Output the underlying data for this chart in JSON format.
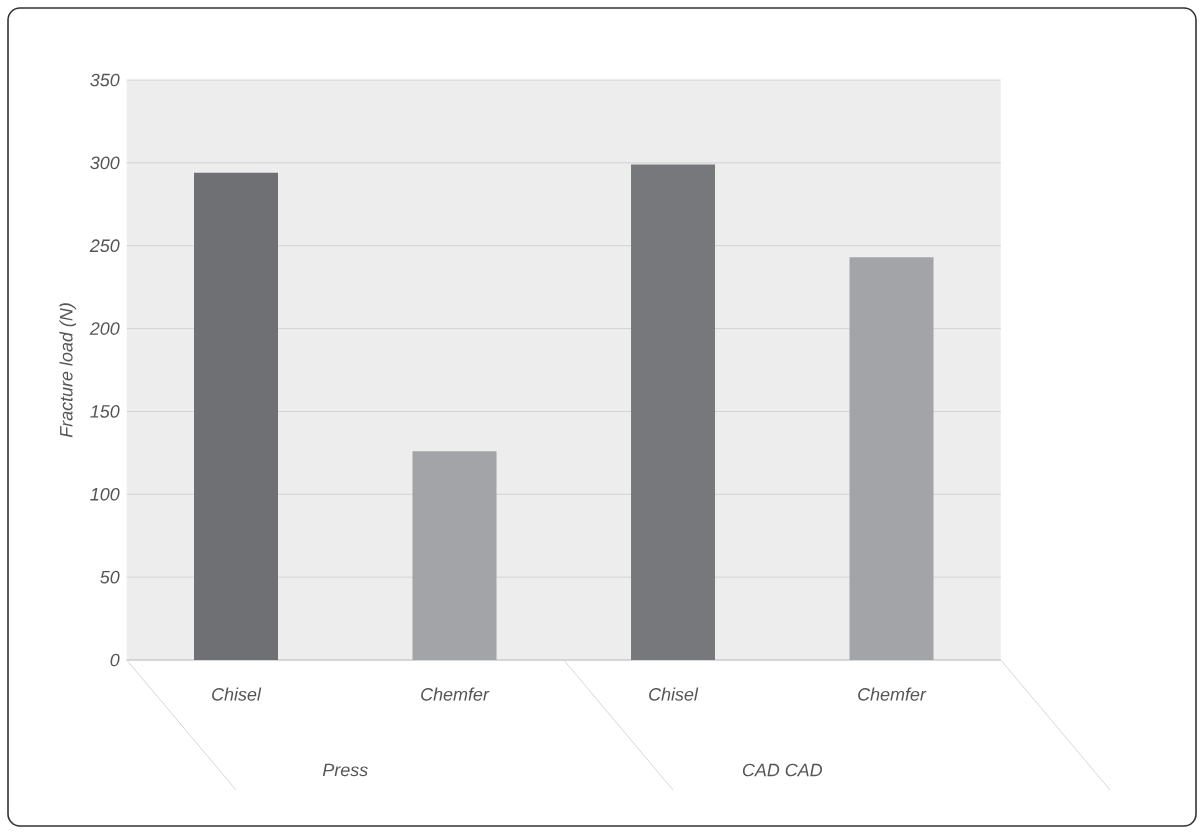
{
  "chart_data": {
    "type": "bar",
    "ylabel": "Fracture load (N)",
    "categories": [
      "Chisel",
      "Chemfer",
      "Chisel",
      "Chemfer"
    ],
    "values": [
      294,
      126,
      299,
      243
    ],
    "colors": [
      "#6f7074",
      "#a3a4a8",
      "#77787c",
      "#a3a4a8"
    ],
    "ylim": [
      0,
      350
    ],
    "yticks": [
      0,
      50,
      100,
      150,
      200,
      250,
      300,
      350
    ],
    "grid": "y",
    "annotations": [
      "Press",
      "CAD CAD"
    ]
  }
}
